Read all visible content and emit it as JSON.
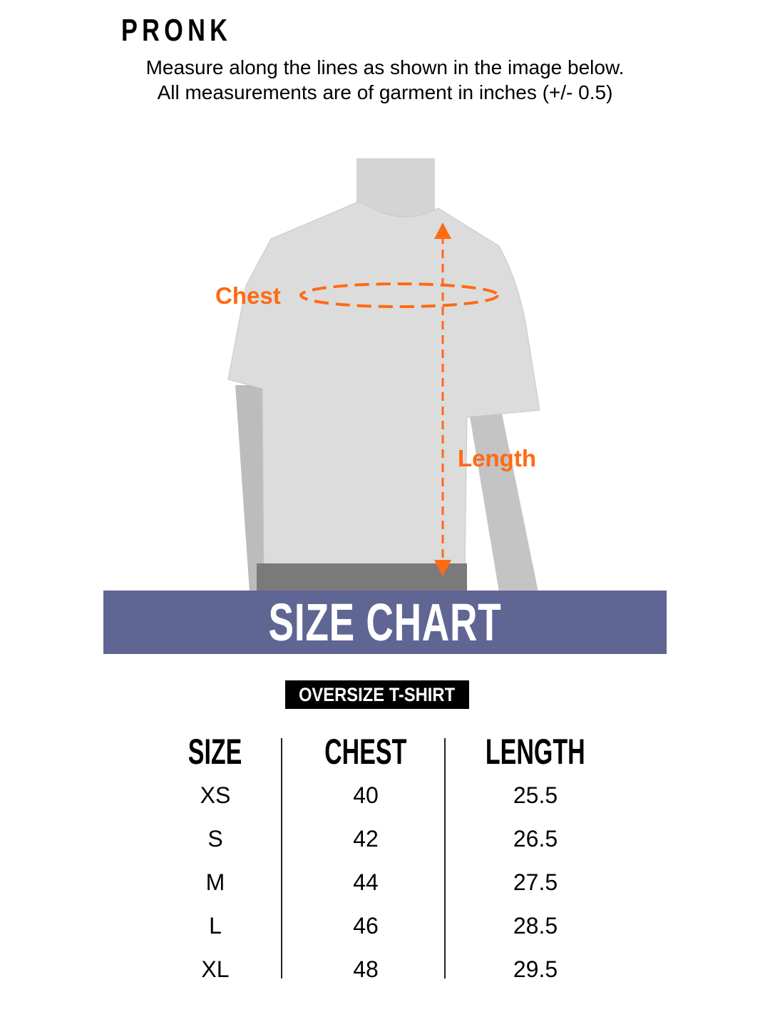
{
  "brand": "PRONK",
  "instructions": [
    "Measure along the lines as shown in the image below.",
    "All measurements are of garment in inches  (+/- 0.5)"
  ],
  "diagram": {
    "chest_label": "Chest",
    "length_label": "Length",
    "accent": "#ff6a13"
  },
  "banner": {
    "title": "SIZE CHART",
    "color": "#5f6694"
  },
  "product": "OVERSIZE T-SHIRT",
  "table": {
    "headers": [
      "SIZE",
      "CHEST",
      "LENGTH"
    ],
    "rows": [
      [
        "XS",
        "40",
        "25.5"
      ],
      [
        "S",
        "42",
        "26.5"
      ],
      [
        "M",
        "44",
        "27.5"
      ],
      [
        "L",
        "46",
        "28.5"
      ],
      [
        "XL",
        "48",
        "29.5"
      ]
    ]
  }
}
